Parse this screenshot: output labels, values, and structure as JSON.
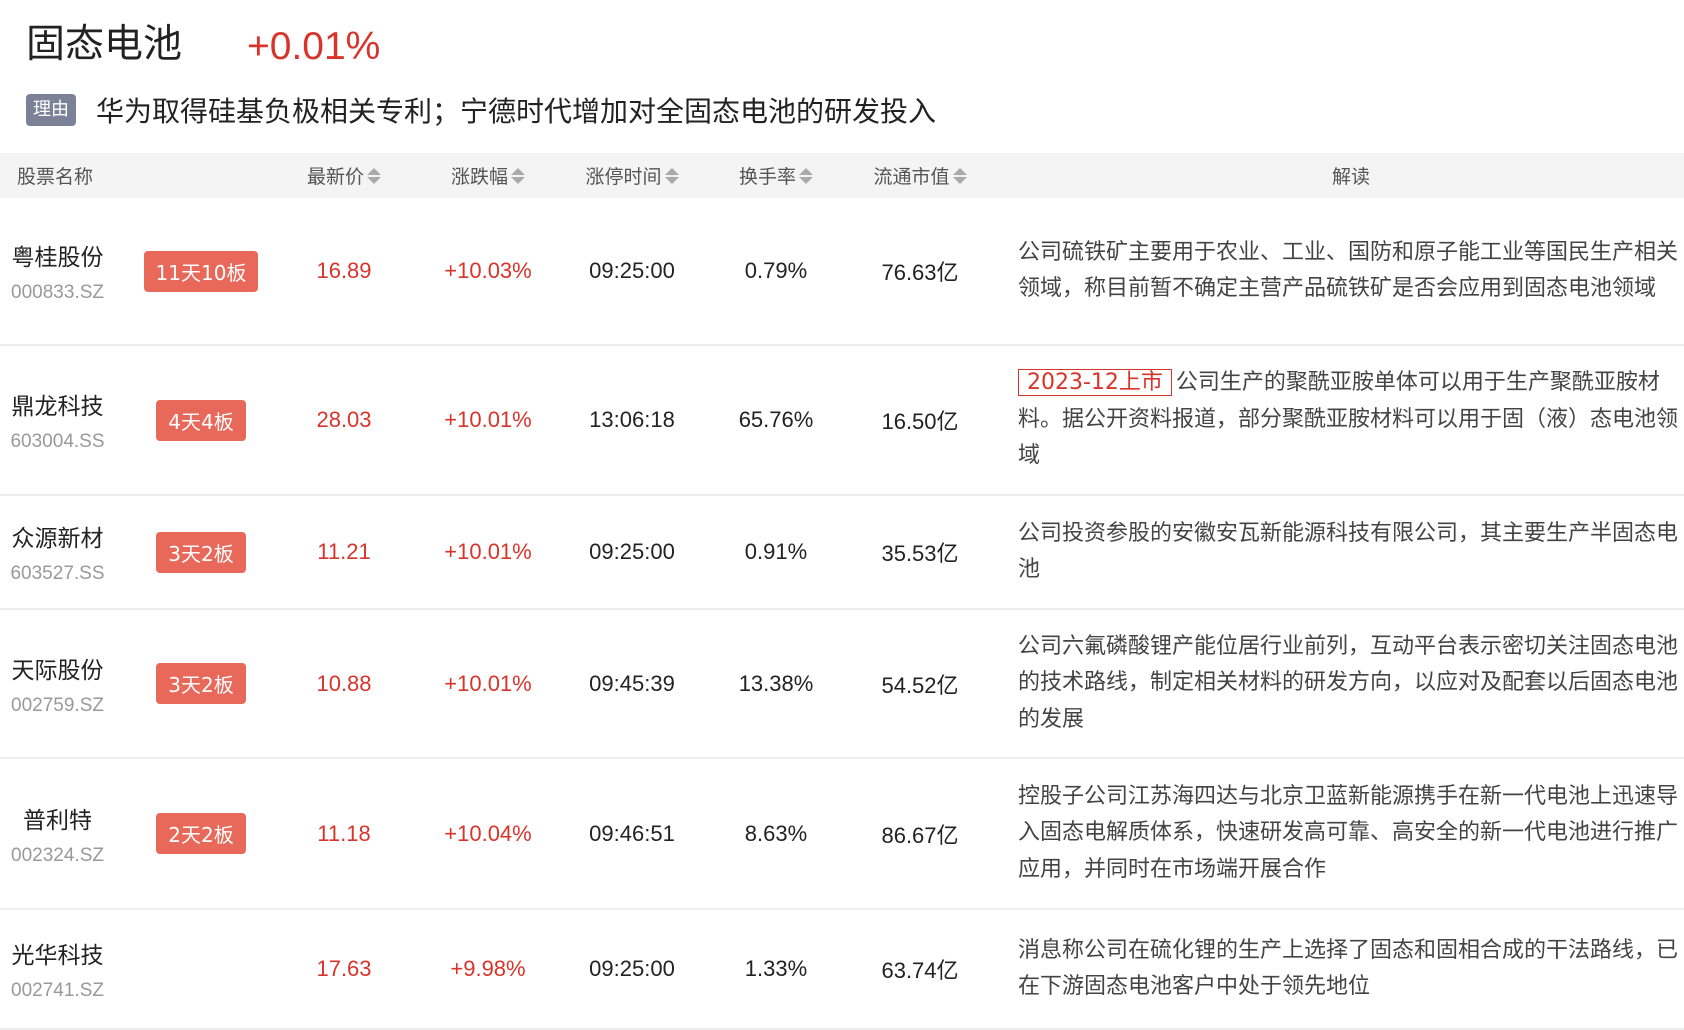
{
  "header": {
    "title": "固态电池",
    "change": "+0.01%",
    "reason_tag": "理由",
    "reason": "华为取得硅基负极相关专利；宁德时代增加对全固态电池的研发投入"
  },
  "columns": [
    "股票名称",
    "最新价",
    "涨跌幅",
    "涨停时间",
    "换手率",
    "流通市值",
    "解读"
  ],
  "colors": {
    "up": "#d9342b",
    "badge": "#e8685a",
    "tag": "#7b8196"
  },
  "rows": [
    {
      "name": "粤桂股份",
      "code": "000833.SZ",
      "badge": "11天10板",
      "price": "16.89",
      "change": "+10.03%",
      "time": "09:25:00",
      "turnover": "0.79%",
      "cap": "76.63亿",
      "highlight": "",
      "interp": "公司硫铁矿主要用于农业、工业、国防和原子能工业等国民生产相关领域，称目前暂不确定主营产品硫铁矿是否会应用到固态电池领域"
    },
    {
      "name": "鼎龙科技",
      "code": "603004.SS",
      "badge": "4天4板",
      "price": "28.03",
      "change": "+10.01%",
      "time": "13:06:18",
      "turnover": "65.76%",
      "cap": "16.50亿",
      "highlight": "2023-12上市",
      "interp": "公司生产的聚酰亚胺单体可以用于生产聚酰亚胺材料。据公开资料报道，部分聚酰亚胺材料可以用于固（液）态电池领域"
    },
    {
      "name": "众源新材",
      "code": "603527.SS",
      "badge": "3天2板",
      "price": "11.21",
      "change": "+10.01%",
      "time": "09:25:00",
      "turnover": "0.91%",
      "cap": "35.53亿",
      "highlight": "",
      "interp": "公司投资参股的安徽安瓦新能源科技有限公司，其主要生产半固态电池"
    },
    {
      "name": "天际股份",
      "code": "002759.SZ",
      "badge": "3天2板",
      "price": "10.88",
      "change": "+10.01%",
      "time": "09:45:39",
      "turnover": "13.38%",
      "cap": "54.52亿",
      "highlight": "",
      "interp": "公司六氟磷酸锂产能位居行业前列，互动平台表示密切关注固态电池的技术路线，制定相关材料的研发方向，以应对及配套以后固态电池的发展"
    },
    {
      "name": "普利特",
      "code": "002324.SZ",
      "badge": "2天2板",
      "price": "11.18",
      "change": "+10.04%",
      "time": "09:46:51",
      "turnover": "8.63%",
      "cap": "86.67亿",
      "highlight": "",
      "interp": "控股子公司江苏海四达与北京卫蓝新能源携手在新一代电池上迅速导入固态电解质体系，快速研发高可靠、高安全的新一代电池进行推广应用，并同时在市场端开展合作"
    },
    {
      "name": "光华科技",
      "code": "002741.SZ",
      "badge": "",
      "price": "17.63",
      "change": "+9.98%",
      "time": "09:25:00",
      "turnover": "1.33%",
      "cap": "63.74亿",
      "highlight": "",
      "interp": "消息称公司在硫化锂的生产上选择了固态和固相合成的干法路线，已在下游固态电池客户中处于领先地位"
    }
  ]
}
